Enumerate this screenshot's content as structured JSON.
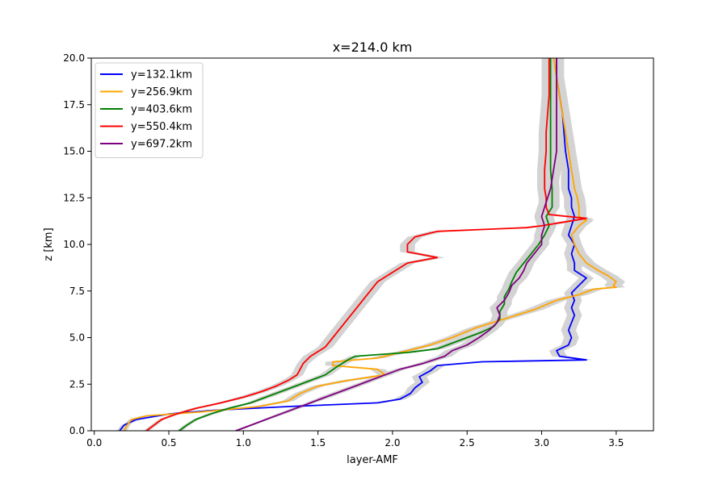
{
  "chart_data": {
    "type": "line",
    "title": "x=214.0 km",
    "xlabel": "layer-AMF",
    "ylabel": "z [km]",
    "xlim": [
      -0.02,
      3.75
    ],
    "ylim": [
      0,
      20
    ],
    "xticks": [
      0.0,
      0.5,
      1.0,
      1.5,
      2.0,
      2.5,
      3.0,
      3.5
    ],
    "xtick_labels": [
      "0.0",
      "0.5",
      "1.0",
      "1.5",
      "2.0",
      "2.5",
      "3.0",
      "3.5"
    ],
    "yticks": [
      0.0,
      2.5,
      5.0,
      7.5,
      10.0,
      12.5,
      15.0,
      17.5,
      20.0
    ],
    "ytick_labels": [
      "0.0",
      "2.5",
      "5.0",
      "7.5",
      "10.0",
      "12.5",
      "15.0",
      "17.5",
      "20.0"
    ],
    "grid": false,
    "legend_position": "upper-left",
    "band_color": "#d3d3d3",
    "series": [
      {
        "name": "y=132.1km",
        "color": "#0000ff",
        "z": [
          0,
          0.3,
          0.6,
          0.9,
          1.1,
          1.3,
          1.5,
          1.7,
          2.0,
          2.3,
          2.6,
          2.9,
          3.2,
          3.5,
          3.7,
          3.8,
          4.0,
          4.3,
          4.6,
          5.0,
          5.4,
          5.8,
          6.2,
          6.6,
          7.0,
          7.4,
          7.8,
          8.2,
          8.6,
          9.0,
          9.5,
          10.0,
          10.5,
          11.0,
          11.5,
          12.0,
          12.5,
          13.0,
          14.0,
          15.0,
          16.0,
          17.0,
          18.0,
          19.0,
          20.0
        ],
        "values": [
          0.17,
          0.2,
          0.28,
          0.5,
          0.8,
          1.3,
          1.9,
          2.05,
          2.12,
          2.15,
          2.2,
          2.18,
          2.25,
          2.3,
          2.6,
          3.3,
          3.12,
          3.1,
          3.18,
          3.2,
          3.18,
          3.2,
          3.22,
          3.2,
          3.22,
          3.2,
          3.25,
          3.3,
          3.22,
          3.22,
          3.2,
          3.22,
          3.18,
          3.2,
          3.22,
          3.2,
          3.2,
          3.18,
          3.18,
          3.16,
          3.15,
          3.14,
          3.12,
          3.1,
          3.1
        ],
        "errors": [
          0.02,
          0.02,
          0.03,
          0.03,
          0.04,
          0.04,
          0.04,
          0.04,
          0.04,
          0.05,
          0.05,
          0.05,
          0.05,
          0.05,
          0.05,
          0.05,
          0.05,
          0.05,
          0.05,
          0.05,
          0.05,
          0.05,
          0.05,
          0.05,
          0.05,
          0.05,
          0.05,
          0.05,
          0.05,
          0.05,
          0.05,
          0.05,
          0.05,
          0.05,
          0.05,
          0.05,
          0.05,
          0.05,
          0.05,
          0.05,
          0.05,
          0.05,
          0.05,
          0.05,
          0.05
        ]
      },
      {
        "name": "y=256.9km",
        "color": "#ffa500",
        "z": [
          0,
          0.3,
          0.6,
          0.8,
          1.0,
          1.3,
          1.6,
          2.0,
          2.4,
          2.7,
          3.0,
          3.3,
          3.5,
          3.7,
          3.9,
          4.1,
          4.3,
          4.6,
          5.0,
          5.5,
          6.0,
          6.5,
          7.0,
          7.3,
          7.6,
          7.7,
          7.8,
          8.0,
          8.3,
          8.6,
          9.0,
          9.5,
          10.0,
          10.5,
          11.0,
          11.3,
          11.5,
          12.0,
          12.5,
          13.0,
          14.0,
          15.0,
          16.0,
          17.0,
          18.0,
          19.0,
          20.0
        ],
        "values": [
          0.2,
          0.22,
          0.25,
          0.35,
          0.7,
          1.1,
          1.3,
          1.38,
          1.5,
          1.7,
          1.95,
          1.9,
          1.6,
          1.6,
          1.9,
          2.0,
          2.1,
          2.25,
          2.4,
          2.55,
          2.75,
          2.95,
          3.1,
          3.25,
          3.35,
          3.5,
          3.48,
          3.5,
          3.45,
          3.38,
          3.3,
          3.25,
          3.22,
          3.2,
          3.25,
          3.3,
          3.25,
          3.25,
          3.24,
          3.22,
          3.2,
          3.18,
          3.16,
          3.14,
          3.12,
          3.1,
          3.08
        ],
        "errors": [
          0.02,
          0.02,
          0.02,
          0.03,
          0.03,
          0.04,
          0.04,
          0.04,
          0.04,
          0.05,
          0.05,
          0.05,
          0.05,
          0.05,
          0.05,
          0.05,
          0.05,
          0.05,
          0.05,
          0.05,
          0.05,
          0.06,
          0.06,
          0.06,
          0.06,
          0.06,
          0.06,
          0.06,
          0.06,
          0.06,
          0.06,
          0.05,
          0.05,
          0.05,
          0.05,
          0.05,
          0.05,
          0.05,
          0.05,
          0.05,
          0.05,
          0.05,
          0.05,
          0.05,
          0.05,
          0.05,
          0.05
        ]
      },
      {
        "name": "y=403.6km",
        "color": "#008000",
        "z": [
          0,
          0.3,
          0.6,
          0.9,
          1.2,
          1.5,
          1.8,
          2.1,
          2.4,
          2.7,
          3.0,
          3.4,
          3.8,
          4.0,
          4.2,
          4.4,
          4.7,
          5.0,
          5.3,
          5.6,
          6.0,
          6.4,
          6.8,
          7.2,
          7.6,
          8.0,
          8.5,
          9.0,
          9.5,
          10.0,
          10.5,
          11.0,
          11.5,
          12.0,
          12.5,
          13.0,
          14.0,
          15.0,
          16.0,
          17.0,
          18.0,
          19.0,
          20.0
        ],
        "values": [
          0.57,
          0.62,
          0.68,
          0.78,
          0.9,
          1.05,
          1.15,
          1.25,
          1.35,
          1.45,
          1.55,
          1.62,
          1.7,
          1.75,
          2.1,
          2.3,
          2.4,
          2.5,
          2.6,
          2.68,
          2.72,
          2.72,
          2.75,
          2.75,
          2.78,
          2.8,
          2.83,
          2.88,
          2.93,
          2.98,
          3.02,
          3.05,
          3.03,
          3.07,
          3.07,
          3.07,
          3.06,
          3.06,
          3.06,
          3.06,
          3.06,
          3.06,
          3.06
        ],
        "errors": [
          0.02,
          0.02,
          0.02,
          0.03,
          0.03,
          0.03,
          0.04,
          0.04,
          0.04,
          0.04,
          0.04,
          0.04,
          0.04,
          0.04,
          0.05,
          0.05,
          0.05,
          0.05,
          0.05,
          0.05,
          0.05,
          0.05,
          0.05,
          0.05,
          0.05,
          0.05,
          0.05,
          0.05,
          0.05,
          0.05,
          0.05,
          0.05,
          0.05,
          0.05,
          0.05,
          0.05,
          0.05,
          0.05,
          0.05,
          0.05,
          0.05,
          0.05,
          0.05
        ]
      },
      {
        "name": "y=550.4km",
        "color": "#ff0000",
        "z": [
          0,
          0.3,
          0.6,
          0.9,
          1.2,
          1.5,
          1.8,
          2.1,
          2.4,
          2.7,
          3.0,
          3.3,
          3.6,
          4.0,
          4.5,
          5.0,
          5.5,
          6.0,
          6.5,
          7.0,
          7.5,
          8.0,
          8.5,
          9.0,
          9.3,
          9.6,
          10.0,
          10.4,
          10.7,
          10.9,
          11.0,
          11.2,
          11.4,
          11.6,
          12.0,
          12.5,
          13.0,
          14.0,
          15.0,
          16.0,
          17.0,
          18.0,
          19.0,
          20.0
        ],
        "values": [
          0.35,
          0.4,
          0.45,
          0.55,
          0.68,
          0.85,
          1.0,
          1.12,
          1.22,
          1.3,
          1.36,
          1.38,
          1.4,
          1.45,
          1.55,
          1.6,
          1.65,
          1.7,
          1.75,
          1.8,
          1.85,
          1.9,
          2.0,
          2.1,
          2.3,
          2.1,
          2.1,
          2.15,
          2.3,
          2.9,
          3.0,
          3.15,
          3.3,
          3.05,
          3.03,
          3.03,
          3.02,
          3.02,
          3.03,
          3.03,
          3.04,
          3.05,
          3.05,
          3.05
        ],
        "errors": [
          0.02,
          0.02,
          0.02,
          0.03,
          0.03,
          0.03,
          0.04,
          0.04,
          0.04,
          0.04,
          0.04,
          0.04,
          0.04,
          0.05,
          0.05,
          0.05,
          0.05,
          0.05,
          0.05,
          0.05,
          0.05,
          0.05,
          0.05,
          0.05,
          0.05,
          0.05,
          0.05,
          0.05,
          0.05,
          0.05,
          0.05,
          0.05,
          0.05,
          0.05,
          0.05,
          0.05,
          0.05,
          0.05,
          0.05,
          0.05,
          0.05,
          0.05,
          0.05,
          0.05
        ]
      },
      {
        "name": "y=697.2km",
        "color": "#800080",
        "z": [
          0,
          0.3,
          0.6,
          0.9,
          1.2,
          1.5,
          1.8,
          2.1,
          2.4,
          2.7,
          3.0,
          3.3,
          3.6,
          4.0,
          4.3,
          4.6,
          5.0,
          5.4,
          5.8,
          6.2,
          6.6,
          7.0,
          7.4,
          7.8,
          8.2,
          8.6,
          9.0,
          9.5,
          10.0,
          10.5,
          11.0,
          11.5,
          12.0,
          12.5,
          13.0,
          14.0,
          15.0,
          16.0,
          17.0,
          18.0,
          19.0,
          20.0
        ],
        "values": [
          0.95,
          1.05,
          1.15,
          1.25,
          1.35,
          1.45,
          1.55,
          1.65,
          1.75,
          1.85,
          1.95,
          2.05,
          2.2,
          2.35,
          2.4,
          2.5,
          2.58,
          2.65,
          2.7,
          2.72,
          2.7,
          2.75,
          2.78,
          2.8,
          2.85,
          2.88,
          2.9,
          2.95,
          3.0,
          3.0,
          3.02,
          3.0,
          3.02,
          3.04,
          3.06,
          3.08,
          3.1,
          3.1,
          3.1,
          3.1,
          3.1,
          3.1
        ],
        "errors": [
          0.02,
          0.02,
          0.02,
          0.03,
          0.03,
          0.03,
          0.04,
          0.04,
          0.04,
          0.04,
          0.04,
          0.04,
          0.04,
          0.05,
          0.05,
          0.05,
          0.05,
          0.05,
          0.05,
          0.05,
          0.05,
          0.05,
          0.05,
          0.05,
          0.05,
          0.05,
          0.05,
          0.05,
          0.05,
          0.05,
          0.05,
          0.05,
          0.05,
          0.05,
          0.05,
          0.05,
          0.05,
          0.05,
          0.05,
          0.05,
          0.05,
          0.05
        ]
      }
    ]
  }
}
